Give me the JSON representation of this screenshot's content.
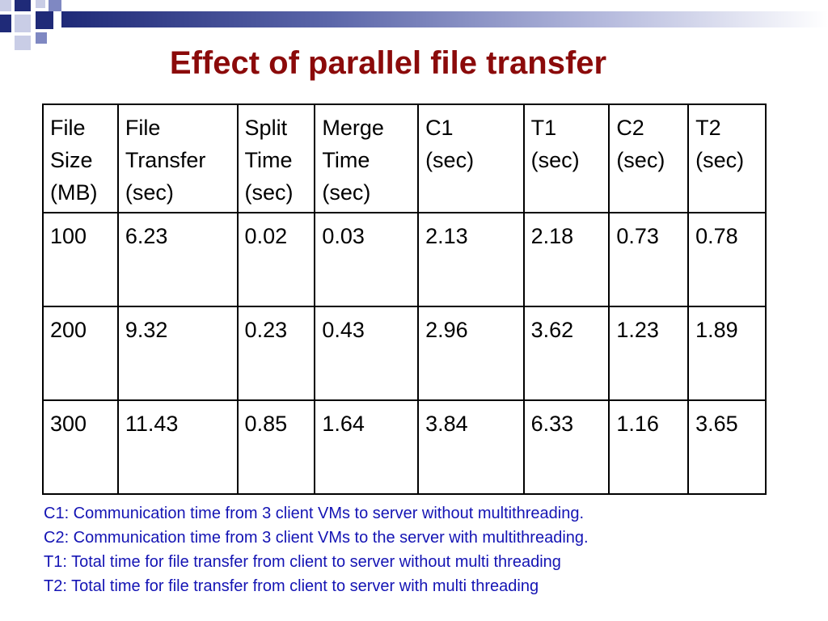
{
  "slide": {
    "title": "Effect of parallel file transfer"
  },
  "table": {
    "columns": [
      [
        "File",
        "Size",
        "(MB)"
      ],
      [
        "File",
        "Transfer",
        "(sec)"
      ],
      [
        "Split",
        "Time",
        "(sec)"
      ],
      [
        "Merge",
        "Time",
        "(sec)"
      ],
      [
        "C1",
        "(sec)"
      ],
      [
        "T1",
        "(sec)"
      ],
      [
        "C2",
        "(sec)"
      ],
      [
        "T2",
        "(sec)"
      ]
    ],
    "rows": [
      [
        "100",
        "6.23",
        "0.02",
        "0.03",
        "2.13",
        "2.18",
        "0.73",
        "0.78"
      ],
      [
        "200",
        "9.32",
        "0.23",
        "0.43",
        "2.96",
        "3.62",
        "1.23",
        "1.89"
      ],
      [
        "300",
        "11.43",
        "0.85",
        "1.64",
        "3.84",
        "6.33",
        "1.16",
        "3.65"
      ]
    ]
  },
  "notes": [
    "C1: Communication time from 3 client VMs to server without multithreading.",
    "C2: Communication time from 3 client VMs to the server with multithreading.",
    "T1: Total time for file transfer from client to server without multi threading",
    "T2: Total time for file transfer from client to server with multi threading"
  ],
  "colors": {
    "title": "#8b0a0a",
    "notes": "#1414b4",
    "accent": "#1f2a78"
  }
}
